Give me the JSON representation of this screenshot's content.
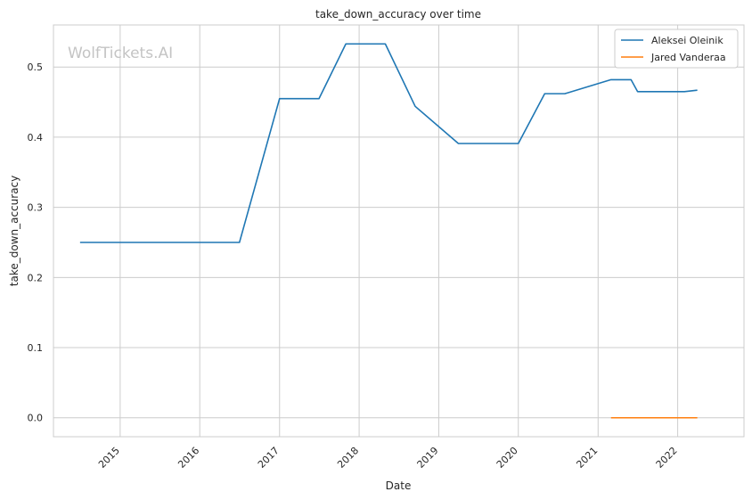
{
  "chart_data": {
    "type": "line",
    "title": "take_down_accuracy over time",
    "xlabel": "Date",
    "ylabel": "take_down_accuracy",
    "watermark": "WolfTickets.AI",
    "x_ticks": [
      "2015",
      "2016",
      "2017",
      "2018",
      "2019",
      "2020",
      "2021",
      "2022"
    ],
    "y_ticks": [
      "0.0",
      "0.1",
      "0.2",
      "0.3",
      "0.4",
      "0.5"
    ],
    "xlim": [
      "2014-03-01",
      "2022-11-01"
    ],
    "ylim": [
      -0.027,
      0.56
    ],
    "grid": true,
    "legend_position": "top-right",
    "colors": {
      "Aleksei Oleinik": "#1f77b4",
      "Jared Vanderaa": "#ff7f0e"
    },
    "series": [
      {
        "name": "Aleksei Oleinik",
        "points": [
          [
            "2014-07-01",
            0.25
          ],
          [
            "2016-07-01",
            0.25
          ],
          [
            "2017-01-01",
            0.455
          ],
          [
            "2017-07-01",
            0.455
          ],
          [
            "2017-11-01",
            0.533
          ],
          [
            "2018-05-01",
            0.533
          ],
          [
            "2018-09-15",
            0.444
          ],
          [
            "2019-04-01",
            0.391
          ],
          [
            "2020-01-01",
            0.391
          ],
          [
            "2020-05-01",
            0.462
          ],
          [
            "2020-08-01",
            0.462
          ],
          [
            "2021-03-01",
            0.482
          ],
          [
            "2021-06-01",
            0.482
          ],
          [
            "2021-07-01",
            0.465
          ],
          [
            "2022-02-01",
            0.465
          ],
          [
            "2022-04-01",
            0.467
          ]
        ]
      },
      {
        "name": "Jared Vanderaa",
        "points": [
          [
            "2021-03-01",
            0.0
          ],
          [
            "2022-04-01",
            0.0
          ]
        ]
      }
    ]
  }
}
